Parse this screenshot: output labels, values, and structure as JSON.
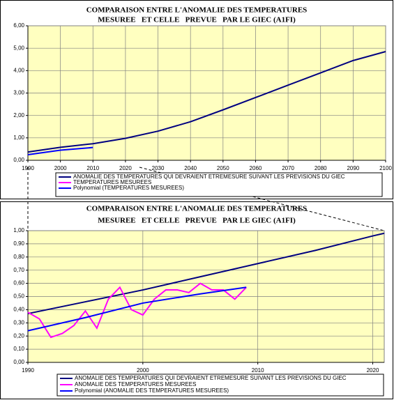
{
  "chart_data": [
    {
      "type": "line",
      "title": [
        "COMPARAISON ENTRE L'ANOMALIE DES TEMPERATURES",
        "MESUREE   ET CELLE   PREVUE   PAR LE GIEC (A1FI)"
      ],
      "xlim": [
        1990,
        2100
      ],
      "xticks": [
        1990,
        2000,
        2010,
        2020,
        2030,
        2040,
        2050,
        2060,
        2070,
        2080,
        2090,
        2100
      ],
      "ylim": [
        0,
        6
      ],
      "yticks": [
        {
          "value": 0,
          "label": "0,00"
        },
        {
          "value": 1,
          "label": "1,00"
        },
        {
          "value": 2,
          "label": "2,00"
        },
        {
          "value": 3,
          "label": "3,00"
        },
        {
          "value": 4,
          "label": "4,00"
        },
        {
          "value": 5,
          "label": "5,00"
        },
        {
          "value": 6,
          "label": "6,00"
        }
      ],
      "grid": true,
      "background": "#ffffc0",
      "series": [
        {
          "name": "ANOMALIE DES TEMPERATURES QUI DEVRAIENT ETREMESURE SUIVANT LES PREVISIONS DU GIEC",
          "color": "#000080",
          "x": [
            1990,
            2000,
            2010,
            2020,
            2030,
            2040,
            2050,
            2060,
            2070,
            2080,
            2090,
            2100
          ],
          "values": [
            0.37,
            0.58,
            0.74,
            0.98,
            1.3,
            1.72,
            2.25,
            2.8,
            3.35,
            3.9,
            4.45,
            4.85
          ]
        },
        {
          "name": "TEMPERATURES MESUREES",
          "color": "#ff00ff",
          "x": [],
          "values": []
        },
        {
          "name": "Polynomial (TEMPERATURES MESUREES)",
          "color": "#0000ff",
          "x": [
            1990,
            2000,
            2010
          ],
          "values": [
            0.25,
            0.45,
            0.57
          ]
        }
      ]
    },
    {
      "type": "line",
      "title": [
        "COMPARAISON ENTRE L'ANOMALIE DES TEMPERATURES",
        "MESUREE   ET CELLE   PREVUE   PAR LE GIEC (A1FI)"
      ],
      "xlim": [
        1990,
        2021
      ],
      "xticks": [
        1990,
        2000,
        2010,
        2020
      ],
      "ylim": [
        0,
        1
      ],
      "yticks": [
        {
          "value": 0,
          "label": "0,00"
        },
        {
          "value": 0.1,
          "label": "0,10"
        },
        {
          "value": 0.2,
          "label": "0,20"
        },
        {
          "value": 0.3,
          "label": "0,30"
        },
        {
          "value": 0.4,
          "label": "0,40"
        },
        {
          "value": 0.5,
          "label": "0,50"
        },
        {
          "value": 0.6,
          "label": "0,60"
        },
        {
          "value": 0.7,
          "label": "0,70"
        },
        {
          "value": 0.8,
          "label": "0,80"
        },
        {
          "value": 0.9,
          "label": "0,90"
        },
        {
          "value": 1,
          "label": "1,00"
        }
      ],
      "grid": true,
      "background": "#ffffc0",
      "series": [
        {
          "name": "ANOMALIE DES TEMPERATURES QUI DEVRAIENT ETREMESURE SUIVANT LES PREVISIONS DU GIEC",
          "color": "#000080",
          "x": [
            1990,
            1995,
            2000,
            2005,
            2010,
            2015,
            2020,
            2021
          ],
          "values": [
            0.37,
            0.46,
            0.55,
            0.65,
            0.75,
            0.85,
            0.96,
            0.98
          ]
        },
        {
          "name": "ANOMALIE DES TEMPERATURES MESUREES",
          "color": "#ff00ff",
          "x": [
            1990,
            1991,
            1992,
            1993,
            1994,
            1995,
            1996,
            1997,
            1998,
            1999,
            2000,
            2001,
            2002,
            2003,
            2004,
            2005,
            2006,
            2007,
            2008,
            2009
          ],
          "values": [
            0.38,
            0.33,
            0.19,
            0.22,
            0.28,
            0.39,
            0.26,
            0.48,
            0.57,
            0.4,
            0.36,
            0.48,
            0.55,
            0.55,
            0.53,
            0.6,
            0.55,
            0.55,
            0.48,
            0.57
          ]
        },
        {
          "name": "Polynomial (ANOMALIE DES TEMPERATURES MESUREES)",
          "color": "#0000ff",
          "x": [
            1990,
            1995,
            2000,
            2005,
            2009
          ],
          "values": [
            0.24,
            0.34,
            0.45,
            0.52,
            0.57
          ]
        }
      ]
    }
  ]
}
